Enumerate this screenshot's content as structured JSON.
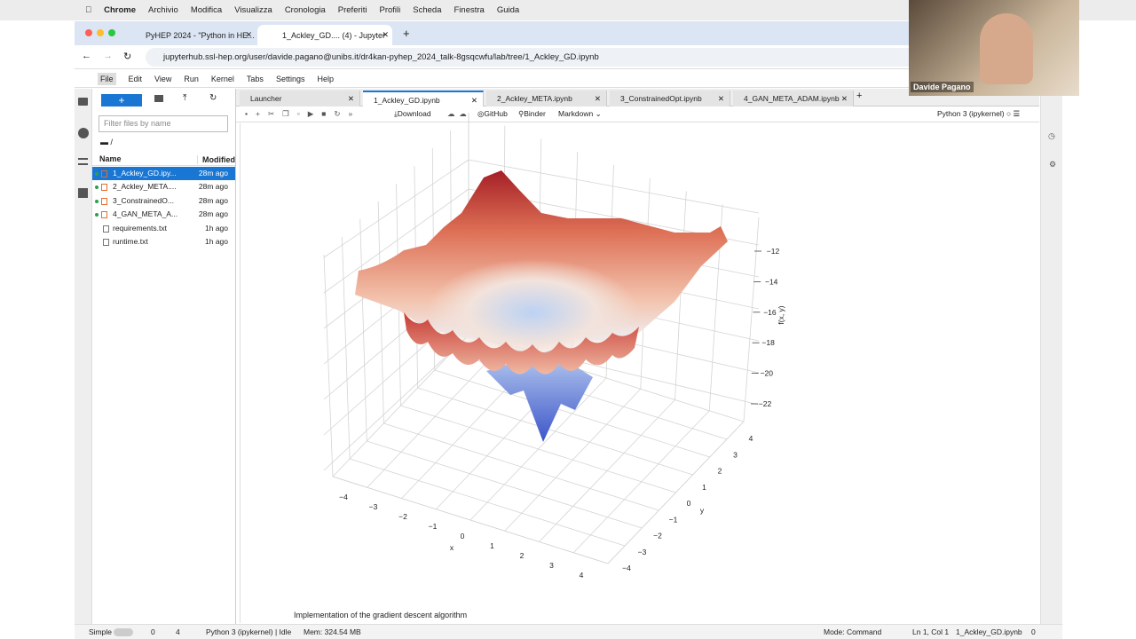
{
  "menubar": {
    "app": "Chrome",
    "items": [
      "Archivio",
      "Modifica",
      "Visualizza",
      "Cronologia",
      "Preferiti",
      "Profili",
      "Scheda",
      "Finestra",
      "Guida"
    ]
  },
  "browser": {
    "tabs": [
      "PyHEP 2024 - \"Python in HE...",
      "1_Ackley_GD.... (4) - Jupyter"
    ],
    "url": "jupyterhub.ssl-hep.org/user/davide.pagano@unibs.it/dr4kan-pyhep_2024_talk-8gsqcwfu/lab/tree/1_Ackley_GD.ipynb"
  },
  "webcam": {
    "name": "Davide Pagano"
  },
  "jupyter": {
    "menu": [
      "File",
      "Edit",
      "View",
      "Run",
      "Kernel",
      "Tabs",
      "Settings",
      "Help"
    ],
    "file_browser": {
      "filter_placeholder": "Filter files by name",
      "path": "/",
      "columns": [
        "Name",
        "Modified"
      ],
      "files": [
        {
          "name": "1_Ackley_GD.ipy...",
          "modified": "28m ago"
        },
        {
          "name": "2_Ackley_META....",
          "modified": "28m ago"
        },
        {
          "name": "3_ConstrainedO...",
          "modified": "28m ago"
        },
        {
          "name": "4_GAN_META_A...",
          "modified": "28m ago"
        },
        {
          "name": "requirements.txt",
          "modified": "1h ago"
        },
        {
          "name": "runtime.txt",
          "modified": "1h ago"
        }
      ]
    },
    "tabs": [
      "Launcher",
      "1_Ackley_GD.ipynb",
      "2_Ackley_META.ipynb",
      "3_ConstrainedOpt.ipynb",
      "4_GAN_META_ADAM.ipynb"
    ],
    "toolbar": {
      "download": "Download",
      "github": "GitHub",
      "binder": "Binder",
      "cell_type": "Markdown",
      "kernel": "Python 3 (ipykernel)"
    },
    "plot": {
      "x_label": "x",
      "y_label": "y",
      "z_label": "f(x, y)",
      "x_ticks": [
        "−4",
        "−3",
        "−2",
        "−1",
        "0",
        "1",
        "2",
        "3",
        "4"
      ],
      "y_ticks": [
        "4",
        "3",
        "2",
        "1",
        "0",
        "−1",
        "−2",
        "−3",
        "−4"
      ],
      "z_ticks": [
        "−12",
        "−14",
        "−16",
        "−18",
        "−20",
        "−22"
      ]
    },
    "cell_text": "Implementation of the gradient descent algorithm",
    "status": {
      "mode_label": "Simple",
      "terminals": "0",
      "kernels": "4",
      "kernel": "Python 3 (ipykernel) | Idle",
      "memory": "Mem: 324.54 MB",
      "mode": "Mode: Command",
      "position": "Ln 1, Col 1",
      "file": "1_Ackley_GD.ipynb",
      "notifications": "0"
    }
  }
}
